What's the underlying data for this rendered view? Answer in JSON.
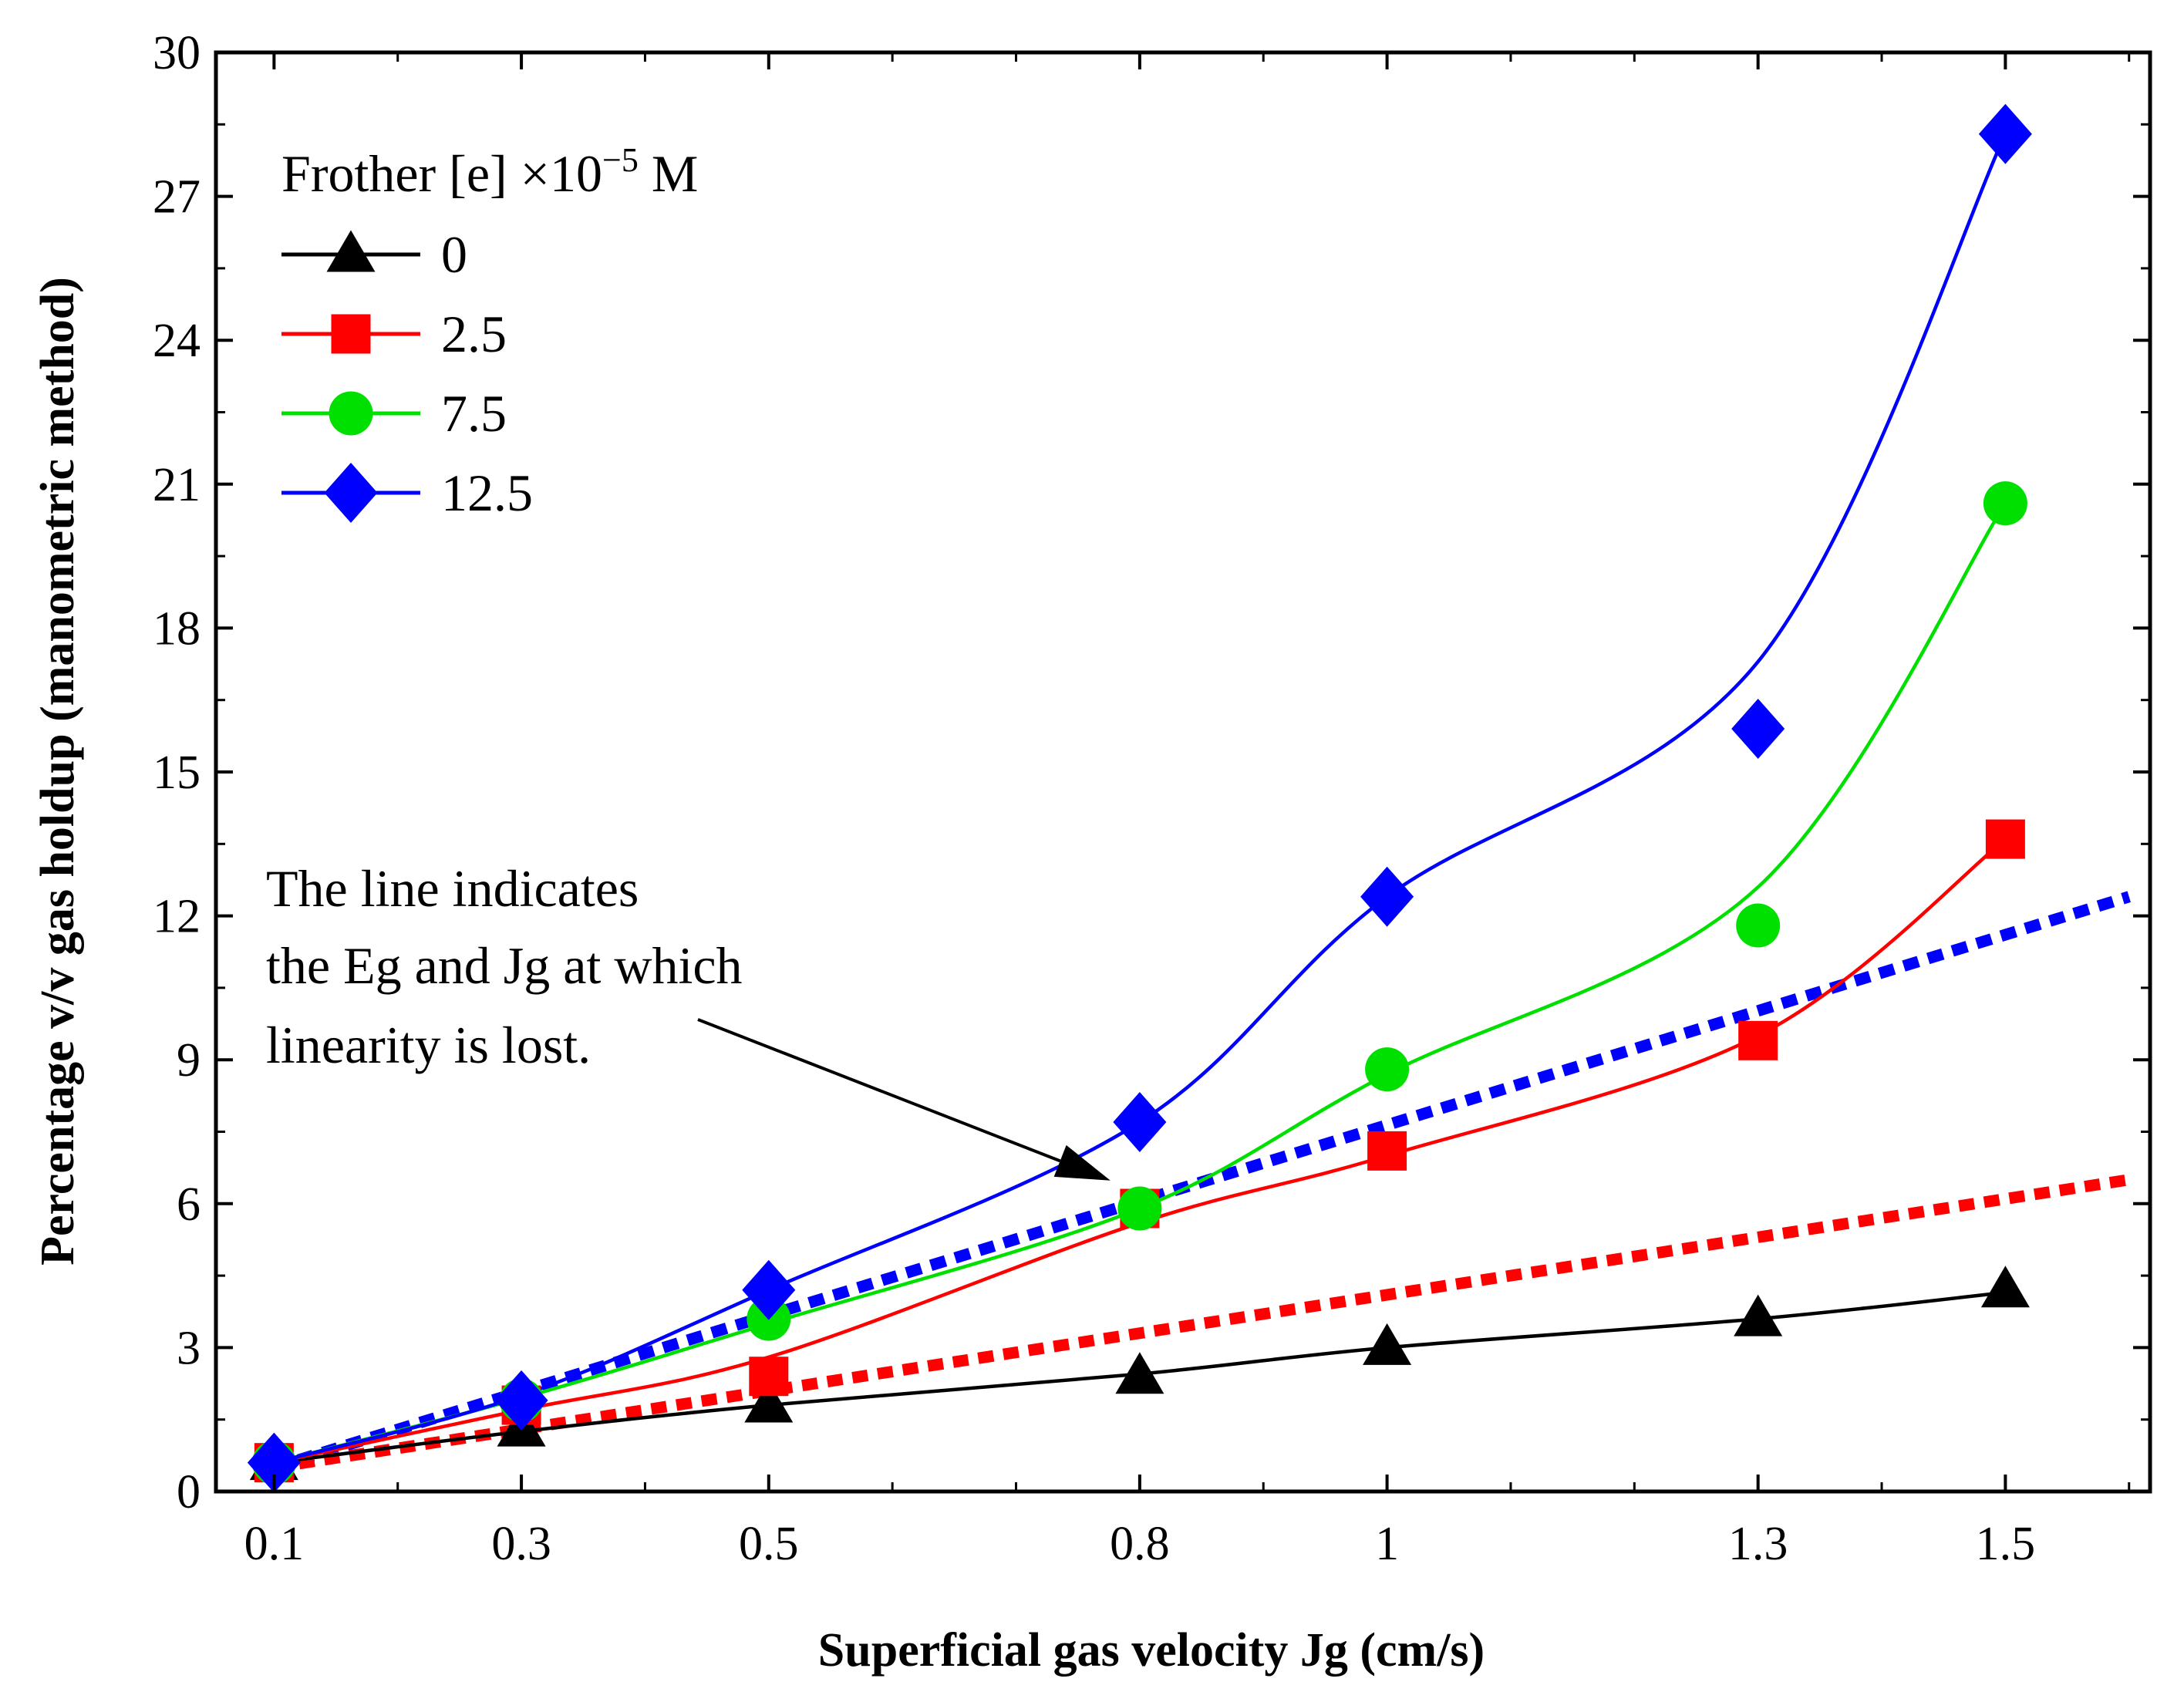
{
  "chart_data": {
    "type": "line",
    "xlabel": "Superficial gas velocity Jg (cm/s)",
    "ylabel": "Percentage v/v gas holdup (manometric method)",
    "x_ticks": [
      "0.1",
      "0.3",
      "0.5",
      "0.8",
      "1",
      "1.3",
      "1.5"
    ],
    "y_ticks": [
      "0",
      "3",
      "6",
      "9",
      "12",
      "15",
      "18",
      "21",
      "24",
      "27",
      "30"
    ],
    "ylim": [
      0,
      30
    ],
    "grid": false,
    "legend": {
      "title_prefix": "Frother [e] ×10",
      "title_exponent": "−5",
      "title_suffix": " M",
      "position": "top-left"
    },
    "series": [
      {
        "name": "0",
        "color": "#000000",
        "marker": "triangle",
        "x": [
          "0.1",
          "0.3",
          "0.5",
          "0.8",
          "1",
          "1.3",
          "1.5"
        ],
        "values": [
          0.6,
          1.3,
          1.8,
          2.4,
          3.0,
          3.6,
          4.2
        ]
      },
      {
        "name": "2.5",
        "color": "#ff0000",
        "marker": "square",
        "x": [
          "0.1",
          "0.3",
          "0.5",
          "0.8",
          "1",
          "1.3",
          "1.5"
        ],
        "values": [
          0.6,
          1.8,
          2.4,
          5.9,
          7.1,
          9.4,
          13.6
        ]
      },
      {
        "name": "7.5",
        "color": "#00e000",
        "marker": "circle",
        "x": [
          "0.1",
          "0.3",
          "0.5",
          "0.8",
          "1",
          "1.3",
          "1.5"
        ],
        "values": [
          0.6,
          1.9,
          3.6,
          5.9,
          8.8,
          11.8,
          20.6
        ]
      },
      {
        "name": "12.5",
        "color": "#0000ff",
        "marker": "diamond",
        "x": [
          "0.1",
          "0.3",
          "0.5",
          "0.8",
          "1",
          "1.3",
          "1.5"
        ],
        "values": [
          0.6,
          1.9,
          4.2,
          7.7,
          12.4,
          15.9,
          28.3
        ]
      }
    ],
    "fit_curves": [
      {
        "color": "#000000",
        "x": [
          0.1,
          0.3,
          0.5,
          0.8,
          1.0,
          1.3,
          1.5
        ],
        "values": [
          0.6,
          1.25,
          1.8,
          2.45,
          3.0,
          3.6,
          4.15
        ]
      },
      {
        "color": "#ff0000",
        "x": [
          0.1,
          0.3,
          0.5,
          0.8,
          1.0,
          1.3,
          1.5
        ],
        "values": [
          0.6,
          1.7,
          2.8,
          5.6,
          7.0,
          9.5,
          13.6
        ]
      },
      {
        "color": "#00e000",
        "x": [
          0.1,
          0.3,
          0.5,
          0.8,
          1.0,
          1.3,
          1.5
        ],
        "values": [
          0.6,
          1.95,
          3.5,
          5.9,
          8.7,
          12.6,
          20.6
        ]
      },
      {
        "color": "#0000ff",
        "x": [
          0.1,
          0.3,
          0.5,
          0.8,
          1.0,
          1.3,
          1.5
        ],
        "values": [
          0.6,
          2.0,
          4.2,
          7.7,
          12.4,
          17.3,
          28.3
        ]
      }
    ],
    "reference_lines": [
      {
        "color": "#0000ff",
        "style": "dotted",
        "x": [
          0.1,
          1.6
        ],
        "values": [
          0.5,
          12.4
        ]
      },
      {
        "color": "#ff0000",
        "style": "dotted",
        "x": [
          0.1,
          1.6
        ],
        "values": [
          0.5,
          6.5
        ]
      }
    ],
    "annotation": {
      "lines": [
        "The line indicates",
        "the Eg and Jg at which",
        "linearity is lost."
      ],
      "arrow_to": {
        "x": "0.8",
        "y": 6.0
      }
    }
  }
}
